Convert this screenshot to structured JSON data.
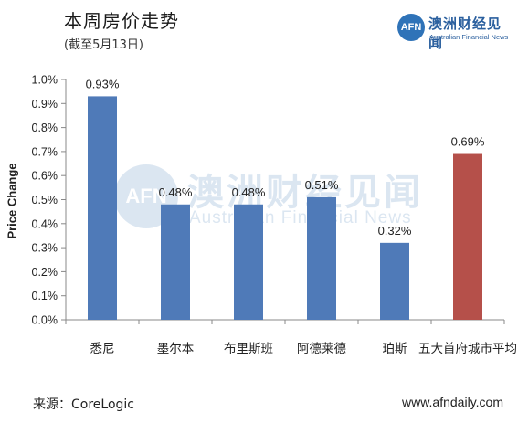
{
  "header": {
    "title": "本周房价走势",
    "subtitle": "(截至5月13日)"
  },
  "logo": {
    "mark": "AFN",
    "name_cn": "澳洲财经见闻",
    "name_en": "Australian Financial News"
  },
  "watermark": {
    "mark": "AFN",
    "name_cn": "澳洲财经见闻",
    "name_en": "Australian Financial News"
  },
  "footer": {
    "source": "来源：CoreLogic",
    "website": "www.afndaily.com"
  },
  "colors": {
    "bar": "#4f7ab8",
    "highlight_bar": "#b5504a",
    "axis": "#888888"
  },
  "chart_data": {
    "type": "bar",
    "title": "",
    "xlabel": "",
    "ylabel": "Price Change",
    "categories": [
      "悉尼",
      "墨尔本",
      "布里斯班",
      "阿德莱德",
      "珀斯",
      "五大首府城市平均"
    ],
    "values": [
      0.93,
      0.48,
      0.48,
      0.51,
      0.32,
      0.69
    ],
    "value_labels": [
      "0.93%",
      "0.48%",
      "0.48%",
      "0.51%",
      "0.32%",
      "0.69%"
    ],
    "highlight_index": 5,
    "ylim": [
      0,
      1.0
    ],
    "yticks": [
      0,
      0.1,
      0.2,
      0.3,
      0.4,
      0.5,
      0.6,
      0.7,
      0.8,
      0.9,
      1.0
    ],
    "ytick_labels": [
      "0.0%",
      "0.1%",
      "0.2%",
      "0.3%",
      "0.4%",
      "0.5%",
      "0.6%",
      "0.7%",
      "0.8%",
      "0.9%",
      "1.0%"
    ],
    "grid": false,
    "legend": "none"
  }
}
